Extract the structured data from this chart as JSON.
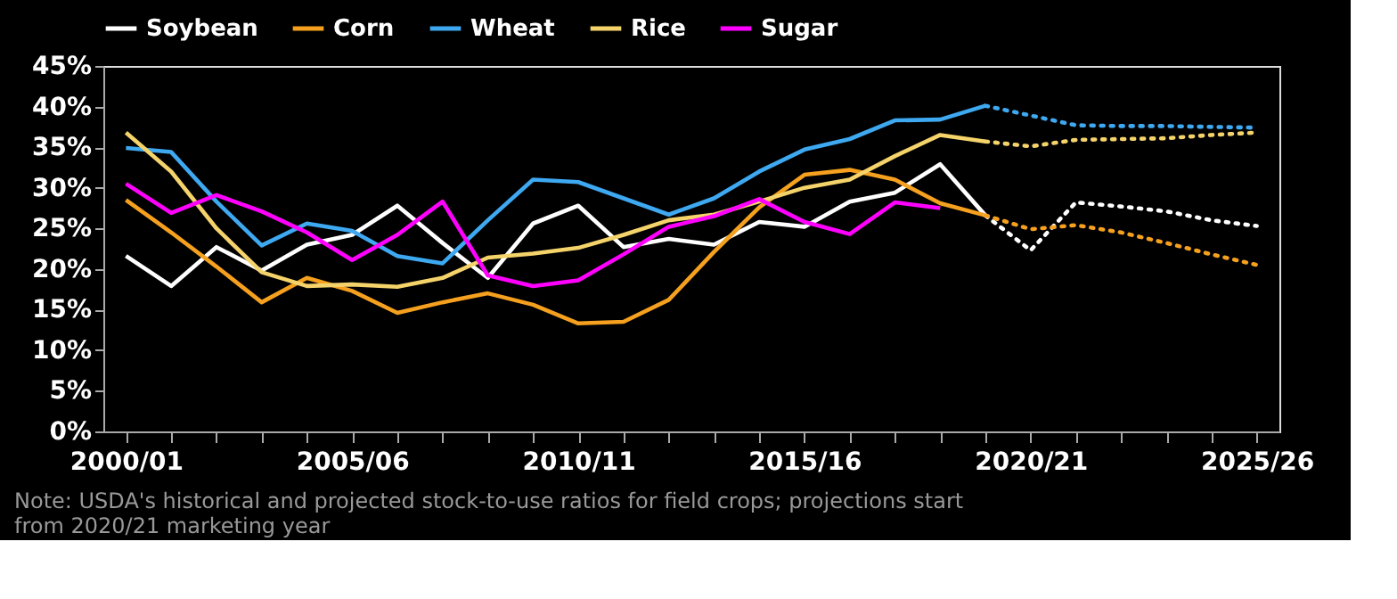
{
  "chart_data": {
    "type": "line",
    "categories": [
      "2000/01",
      null,
      null,
      null,
      null,
      "2005/06",
      null,
      null,
      null,
      null,
      "2010/11",
      null,
      null,
      null,
      null,
      "2015/16",
      null,
      null,
      null,
      null,
      "2020/21",
      null,
      null,
      null,
      null,
      "2025/26"
    ],
    "ylim": [
      0,
      45
    ],
    "yticks": [
      {
        "value": 0,
        "label": "0%"
      },
      {
        "value": 5,
        "label": "5%"
      },
      {
        "value": 10,
        "label": "10%"
      },
      {
        "value": 15,
        "label": "15%"
      },
      {
        "value": 20,
        "label": "20%"
      },
      {
        "value": 25,
        "label": "25%"
      },
      {
        "value": 30,
        "label": "30%"
      },
      {
        "value": 35,
        "label": "35%"
      },
      {
        "value": 40,
        "label": "40%"
      },
      {
        "value": 45,
        "label": "45%"
      }
    ],
    "grid": false,
    "legend": "top",
    "annotations": [
      "Note: USDA's historical and projected stock-to-use ratios for field crops; projections start from 2020/21 marketing year"
    ],
    "series": [
      {
        "name": "Soybean",
        "color": "#ffffff",
        "line_style": "solid",
        "values": [
          21.6,
          17.9,
          22.7,
          19.8,
          23.0,
          24.2,
          27.8,
          23.2,
          18.9,
          25.6,
          27.8,
          22.7,
          23.7,
          23.0,
          25.8,
          25.2,
          28.3,
          29.4,
          32.9,
          26.6,
          null,
          null,
          null,
          null,
          null,
          null
        ]
      },
      {
        "name": "Corn",
        "color": "#f5a01e",
        "line_style": "solid",
        "values": [
          28.5,
          24.5,
          20.3,
          15.9,
          18.9,
          17.3,
          14.6,
          15.9,
          17.0,
          15.6,
          13.3,
          13.5,
          16.2,
          22.1,
          27.6,
          31.6,
          32.2,
          31.0,
          28.1,
          26.6,
          null,
          null,
          null,
          null,
          null,
          null
        ]
      },
      {
        "name": "Wheat",
        "color": "#3ea8f0",
        "line_style": "solid",
        "values": [
          34.9,
          34.4,
          28.3,
          22.9,
          25.6,
          24.7,
          21.6,
          20.7,
          26.0,
          31.0,
          30.7,
          28.7,
          26.7,
          28.7,
          32.0,
          34.7,
          36.0,
          38.3,
          38.4,
          40.1,
          null,
          null,
          null,
          null,
          null,
          null
        ]
      },
      {
        "name": "Rice",
        "color": "#f5d36b",
        "line_style": "solid",
        "values": [
          36.8,
          32.0,
          25.0,
          19.6,
          17.9,
          18.1,
          17.8,
          18.9,
          21.4,
          21.9,
          22.6,
          24.2,
          26.0,
          26.7,
          28.3,
          30.0,
          31.0,
          33.9,
          36.5,
          35.7,
          null,
          null,
          null,
          null,
          null,
          null
        ]
      },
      {
        "name": "Sugar",
        "color": "#ff00ff",
        "line_style": "solid",
        "values": [
          30.5,
          26.9,
          29.1,
          27.1,
          24.5,
          21.1,
          24.2,
          28.3,
          19.2,
          17.9,
          18.6,
          21.8,
          25.2,
          26.5,
          28.6,
          25.8,
          24.3,
          28.2,
          27.5,
          null,
          null,
          null,
          null,
          null,
          null,
          null
        ]
      },
      {
        "color": "#ffffff",
        "line_style": "dotted",
        "values": [
          null,
          null,
          null,
          null,
          null,
          null,
          null,
          null,
          null,
          null,
          null,
          null,
          null,
          null,
          null,
          null,
          null,
          null,
          null,
          26.6,
          22.3,
          28.2,
          27.7,
          27.1,
          26.0,
          25.3
        ]
      },
      {
        "color": "#f5a01e",
        "line_style": "dotted",
        "values": [
          null,
          null,
          null,
          null,
          null,
          null,
          null,
          null,
          null,
          null,
          null,
          null,
          null,
          null,
          null,
          null,
          null,
          null,
          null,
          26.6,
          24.9,
          25.4,
          24.5,
          23.2,
          21.8,
          20.5
        ]
      },
      {
        "color": "#3ea8f0",
        "line_style": "dotted",
        "values": [
          null,
          null,
          null,
          null,
          null,
          null,
          null,
          null,
          null,
          null,
          null,
          null,
          null,
          null,
          null,
          null,
          null,
          null,
          null,
          40.1,
          38.9,
          37.7,
          37.6,
          37.6,
          37.5,
          37.4
        ]
      },
      {
        "color": "#f5d36b",
        "line_style": "dotted",
        "values": [
          null,
          null,
          null,
          null,
          null,
          null,
          null,
          null,
          null,
          null,
          null,
          null,
          null,
          null,
          null,
          null,
          null,
          null,
          null,
          35.7,
          35.1,
          35.9,
          36.0,
          36.1,
          36.5,
          36.8
        ]
      }
    ]
  }
}
